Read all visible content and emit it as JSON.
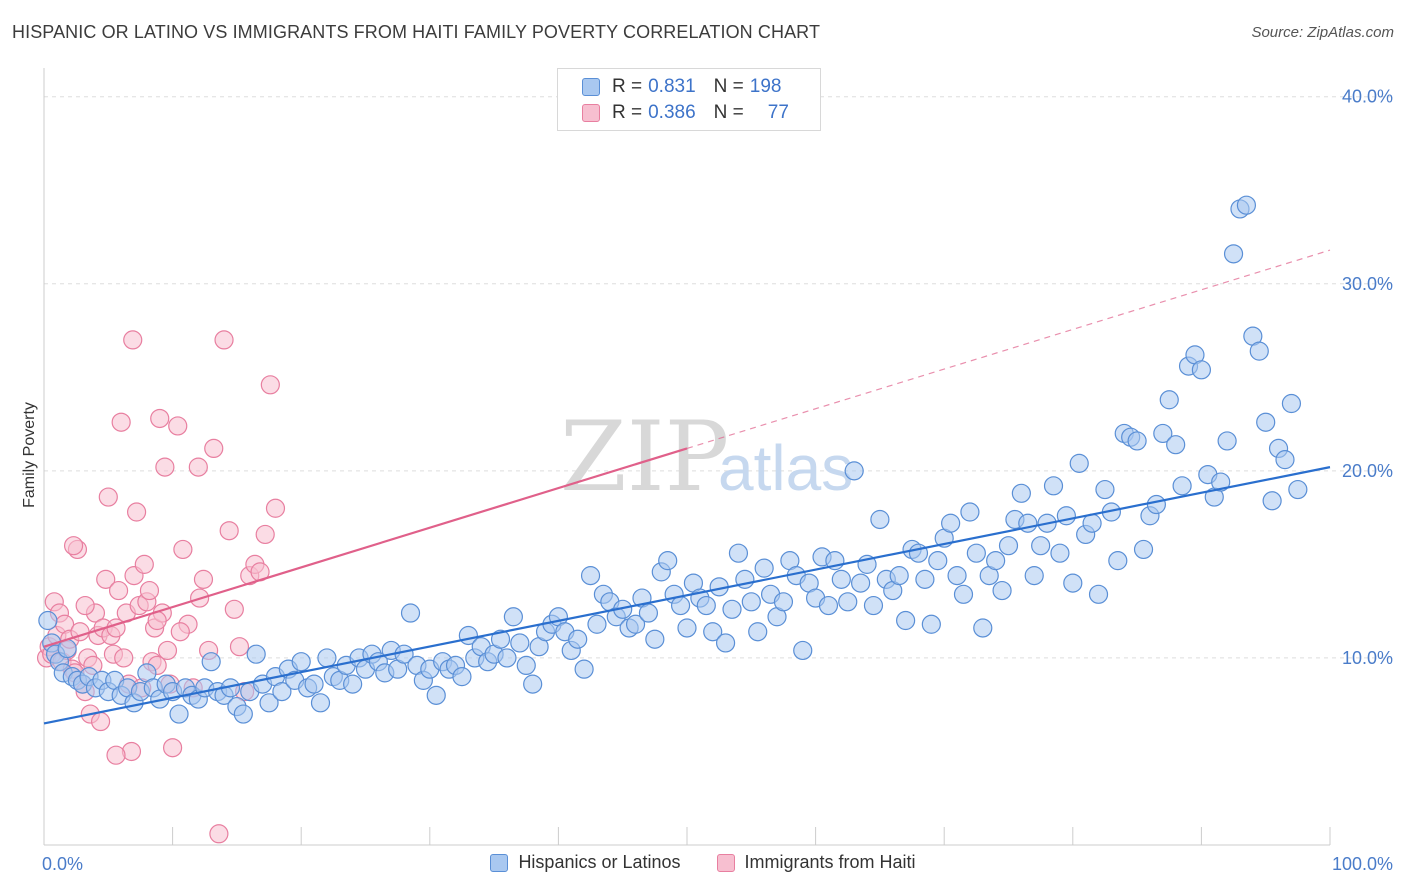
{
  "title": "HISPANIC OR LATINO VS IMMIGRANTS FROM HAITI FAMILY POVERTY CORRELATION CHART",
  "source": "Source: ZipAtlas.com",
  "watermark": {
    "zip": "ZIP",
    "atlas": "atlas"
  },
  "legend": {
    "rows": [
      {
        "r_label": "R =",
        "r_value": "0.831",
        "n_label": "N =",
        "n_value": "198"
      },
      {
        "r_label": "R =",
        "r_value": "0.386",
        "n_label": "N =",
        "n_value": "77"
      }
    ]
  },
  "colors": {
    "blue_fill": "#a9c8f0",
    "blue_stroke": "#5a8fd6",
    "blue_line": "#2a6fce",
    "pink_fill": "#f7bfd0",
    "pink_stroke": "#e87fa0",
    "pink_line": "#e0608a",
    "grid": "#dddddd",
    "tick_text": "#4a7cc9"
  },
  "chart_data": {
    "type": "scatter",
    "title": "HISPANIC OR LATINO VS IMMIGRANTS FROM HAITI FAMILY POVERTY CORRELATION CHART",
    "xlabel": "",
    "ylabel": "Family Poverty",
    "xlim": [
      0,
      100
    ],
    "ylim": [
      0,
      41
    ],
    "x_tick_labels": [
      "0.0%",
      "100.0%"
    ],
    "y_ticks": [
      10,
      20,
      30,
      40
    ],
    "y_tick_labels": [
      "10.0%",
      "20.0%",
      "30.0%",
      "40.0%"
    ],
    "grid": "horizontal dashed",
    "legend_position": "top-center",
    "series": [
      {
        "name": "Hispanics or Latinos",
        "R": 0.831,
        "N": 198,
        "trend": {
          "x": [
            0,
            100
          ],
          "y": [
            6.5,
            20.2
          ],
          "style": "solid"
        },
        "points": [
          [
            0.3,
            12.0
          ],
          [
            0.6,
            10.8
          ],
          [
            0.9,
            10.2
          ],
          [
            1.2,
            9.8
          ],
          [
            1.5,
            9.2
          ],
          [
            1.8,
            10.5
          ],
          [
            2.2,
            9.0
          ],
          [
            2.6,
            8.8
          ],
          [
            3.0,
            8.6
          ],
          [
            3.5,
            9.0
          ],
          [
            4.0,
            8.4
          ],
          [
            4.5,
            8.8
          ],
          [
            5.0,
            8.2
          ],
          [
            5.5,
            8.8
          ],
          [
            6.0,
            8.0
          ],
          [
            6.5,
            8.4
          ],
          [
            7.0,
            7.6
          ],
          [
            7.5,
            8.2
          ],
          [
            8.0,
            9.2
          ],
          [
            8.5,
            8.4
          ],
          [
            9.0,
            7.8
          ],
          [
            9.5,
            8.6
          ],
          [
            10.0,
            8.2
          ],
          [
            10.5,
            7.0
          ],
          [
            11.0,
            8.4
          ],
          [
            11.5,
            8.0
          ],
          [
            12.0,
            7.8
          ],
          [
            12.5,
            8.4
          ],
          [
            13.0,
            9.8
          ],
          [
            13.5,
            8.2
          ],
          [
            14.0,
            8.0
          ],
          [
            14.5,
            8.4
          ],
          [
            15.0,
            7.4
          ],
          [
            15.5,
            7.0
          ],
          [
            16.0,
            8.2
          ],
          [
            16.5,
            10.2
          ],
          [
            17.0,
            8.6
          ],
          [
            17.5,
            7.6
          ],
          [
            18.0,
            9.0
          ],
          [
            18.5,
            8.2
          ],
          [
            19.0,
            9.4
          ],
          [
            19.5,
            8.8
          ],
          [
            20.0,
            9.8
          ],
          [
            20.5,
            8.4
          ],
          [
            21.0,
            8.6
          ],
          [
            21.5,
            7.6
          ],
          [
            22.0,
            10.0
          ],
          [
            22.5,
            9.0
          ],
          [
            23.0,
            8.8
          ],
          [
            23.5,
            9.6
          ],
          [
            24.0,
            8.6
          ],
          [
            24.5,
            10.0
          ],
          [
            25.0,
            9.4
          ],
          [
            25.5,
            10.2
          ],
          [
            26.0,
            9.8
          ],
          [
            26.5,
            9.2
          ],
          [
            27.0,
            10.4
          ],
          [
            27.5,
            9.4
          ],
          [
            28.0,
            10.2
          ],
          [
            28.5,
            12.4
          ],
          [
            29.0,
            9.6
          ],
          [
            29.5,
            8.8
          ],
          [
            30.0,
            9.4
          ],
          [
            30.5,
            8.0
          ],
          [
            31.0,
            9.8
          ],
          [
            31.5,
            9.4
          ],
          [
            32.0,
            9.6
          ],
          [
            32.5,
            9.0
          ],
          [
            33.0,
            11.2
          ],
          [
            33.5,
            10.0
          ],
          [
            34.0,
            10.6
          ],
          [
            34.5,
            9.8
          ],
          [
            35.0,
            10.2
          ],
          [
            35.5,
            11.0
          ],
          [
            36.0,
            10.0
          ],
          [
            36.5,
            12.2
          ],
          [
            37.0,
            10.8
          ],
          [
            37.5,
            9.6
          ],
          [
            38.0,
            8.6
          ],
          [
            38.5,
            10.6
          ],
          [
            39.0,
            11.4
          ],
          [
            39.5,
            11.8
          ],
          [
            40.0,
            12.2
          ],
          [
            40.5,
            11.4
          ],
          [
            41.0,
            10.4
          ],
          [
            41.5,
            11.0
          ],
          [
            42.0,
            9.4
          ],
          [
            42.5,
            14.4
          ],
          [
            43.0,
            11.8
          ],
          [
            43.5,
            13.4
          ],
          [
            44.0,
            13.0
          ],
          [
            44.5,
            12.2
          ],
          [
            45.0,
            12.6
          ],
          [
            45.5,
            11.6
          ],
          [
            46.0,
            11.8
          ],
          [
            46.5,
            13.2
          ],
          [
            47.0,
            12.4
          ],
          [
            47.5,
            11.0
          ],
          [
            48.0,
            14.6
          ],
          [
            48.5,
            15.2
          ],
          [
            49.0,
            13.4
          ],
          [
            49.5,
            12.8
          ],
          [
            50.0,
            11.6
          ],
          [
            50.5,
            14.0
          ],
          [
            51.0,
            13.2
          ],
          [
            51.5,
            12.8
          ],
          [
            52.0,
            11.4
          ],
          [
            52.5,
            13.8
          ],
          [
            53.0,
            10.8
          ],
          [
            53.5,
            12.6
          ],
          [
            54.0,
            15.6
          ],
          [
            54.5,
            14.2
          ],
          [
            55.0,
            13.0
          ],
          [
            55.5,
            11.4
          ],
          [
            56.0,
            14.8
          ],
          [
            56.5,
            13.4
          ],
          [
            57.0,
            12.2
          ],
          [
            57.5,
            13.0
          ],
          [
            58.0,
            15.2
          ],
          [
            58.5,
            14.4
          ],
          [
            59.0,
            10.4
          ],
          [
            59.5,
            14.0
          ],
          [
            60.0,
            13.2
          ],
          [
            60.5,
            15.4
          ],
          [
            61.0,
            12.8
          ],
          [
            61.5,
            15.2
          ],
          [
            62.0,
            14.2
          ],
          [
            62.5,
            13.0
          ],
          [
            63.0,
            20.0
          ],
          [
            63.5,
            14.0
          ],
          [
            64.0,
            15.0
          ],
          [
            64.5,
            12.8
          ],
          [
            65.0,
            17.4
          ],
          [
            65.5,
            14.2
          ],
          [
            66.0,
            13.6
          ],
          [
            66.5,
            14.4
          ],
          [
            67.0,
            12.0
          ],
          [
            67.5,
            15.8
          ],
          [
            68.0,
            15.6
          ],
          [
            68.5,
            14.2
          ],
          [
            69.0,
            11.8
          ],
          [
            69.5,
            15.2
          ],
          [
            70.0,
            16.4
          ],
          [
            70.5,
            17.2
          ],
          [
            71.0,
            14.4
          ],
          [
            71.5,
            13.4
          ],
          [
            72.0,
            17.8
          ],
          [
            72.5,
            15.6
          ],
          [
            73.0,
            11.6
          ],
          [
            73.5,
            14.4
          ],
          [
            74.0,
            15.2
          ],
          [
            74.5,
            13.6
          ],
          [
            75.0,
            16.0
          ],
          [
            75.5,
            17.4
          ],
          [
            76.0,
            18.8
          ],
          [
            76.5,
            17.2
          ],
          [
            77.0,
            14.4
          ],
          [
            77.5,
            16.0
          ],
          [
            78.0,
            17.2
          ],
          [
            78.5,
            19.2
          ],
          [
            79.0,
            15.6
          ],
          [
            79.5,
            17.6
          ],
          [
            80.0,
            14.0
          ],
          [
            80.5,
            20.4
          ],
          [
            81.0,
            16.6
          ],
          [
            81.5,
            17.2
          ],
          [
            82.0,
            13.4
          ],
          [
            82.5,
            19.0
          ],
          [
            83.0,
            17.8
          ],
          [
            83.5,
            15.2
          ],
          [
            84.0,
            22.0
          ],
          [
            84.5,
            21.8
          ],
          [
            85.0,
            21.6
          ],
          [
            85.5,
            15.8
          ],
          [
            86.0,
            17.6
          ],
          [
            86.5,
            18.2
          ],
          [
            87.0,
            22.0
          ],
          [
            87.5,
            23.8
          ],
          [
            88.0,
            21.4
          ],
          [
            88.5,
            19.2
          ],
          [
            89.0,
            25.6
          ],
          [
            89.5,
            26.2
          ],
          [
            90.0,
            25.4
          ],
          [
            90.5,
            19.8
          ],
          [
            91.0,
            18.6
          ],
          [
            91.5,
            19.4
          ],
          [
            92.0,
            21.6
          ],
          [
            92.5,
            31.6
          ],
          [
            93.0,
            34.0
          ],
          [
            93.5,
            34.2
          ],
          [
            94.0,
            27.2
          ],
          [
            94.5,
            26.4
          ],
          [
            95.0,
            22.6
          ],
          [
            95.5,
            18.4
          ],
          [
            96.0,
            21.2
          ],
          [
            96.5,
            20.6
          ],
          [
            97.0,
            23.6
          ],
          [
            97.5,
            19.0
          ]
        ]
      },
      {
        "name": "Immigrants from Haiti",
        "R": 0.386,
        "N": 77,
        "trend": {
          "x": [
            0,
            100
          ],
          "y": [
            10.6,
            31.8
          ],
          "style": "solid to x=50, dashed beyond"
        },
        "points": [
          [
            0.2,
            10.0
          ],
          [
            0.4,
            10.6
          ],
          [
            0.6,
            10.2
          ],
          [
            0.8,
            13.0
          ],
          [
            1.0,
            11.2
          ],
          [
            1.2,
            12.4
          ],
          [
            1.4,
            9.8
          ],
          [
            1.6,
            11.8
          ],
          [
            1.8,
            10.4
          ],
          [
            2.0,
            11.0
          ],
          [
            2.2,
            9.4
          ],
          [
            2.4,
            9.2
          ],
          [
            2.6,
            15.8
          ],
          [
            2.8,
            11.4
          ],
          [
            3.0,
            8.6
          ],
          [
            3.2,
            8.2
          ],
          [
            3.4,
            10.0
          ],
          [
            3.6,
            7.0
          ],
          [
            3.8,
            9.6
          ],
          [
            4.0,
            12.4
          ],
          [
            4.2,
            11.2
          ],
          [
            4.4,
            6.6
          ],
          [
            4.6,
            11.6
          ],
          [
            4.8,
            14.2
          ],
          [
            5.0,
            18.6
          ],
          [
            5.2,
            11.2
          ],
          [
            5.4,
            10.2
          ],
          [
            5.6,
            11.6
          ],
          [
            5.8,
            13.6
          ],
          [
            6.0,
            22.6
          ],
          [
            6.2,
            10.0
          ],
          [
            6.4,
            12.4
          ],
          [
            6.6,
            8.6
          ],
          [
            6.8,
            5.0
          ],
          [
            7.0,
            14.4
          ],
          [
            7.2,
            17.8
          ],
          [
            7.4,
            12.8
          ],
          [
            7.6,
            8.4
          ],
          [
            7.8,
            15.0
          ],
          [
            8.0,
            13.0
          ],
          [
            8.2,
            13.6
          ],
          [
            8.4,
            9.8
          ],
          [
            8.6,
            11.6
          ],
          [
            8.8,
            9.6
          ],
          [
            9.0,
            22.8
          ],
          [
            9.2,
            12.4
          ],
          [
            9.4,
            20.2
          ],
          [
            9.6,
            10.4
          ],
          [
            9.8,
            8.6
          ],
          [
            10.0,
            5.2
          ],
          [
            10.4,
            22.4
          ],
          [
            10.8,
            15.8
          ],
          [
            11.2,
            11.8
          ],
          [
            11.6,
            8.4
          ],
          [
            12.0,
            20.2
          ],
          [
            12.4,
            14.2
          ],
          [
            12.8,
            10.4
          ],
          [
            13.2,
            21.2
          ],
          [
            13.6,
            0.6
          ],
          [
            14.0,
            27.0
          ],
          [
            14.4,
            16.8
          ],
          [
            14.8,
            12.6
          ],
          [
            15.2,
            10.6
          ],
          [
            15.6,
            8.2
          ],
          [
            16.0,
            14.4
          ],
          [
            16.4,
            15.0
          ],
          [
            16.8,
            14.6
          ],
          [
            17.2,
            16.6
          ],
          [
            17.6,
            24.6
          ],
          [
            18.0,
            18.0
          ],
          [
            6.9,
            27.0
          ],
          [
            3.2,
            12.8
          ],
          [
            5.6,
            4.8
          ],
          [
            12.1,
            13.2
          ],
          [
            2.3,
            16.0
          ],
          [
            8.8,
            12.0
          ],
          [
            10.6,
            11.4
          ]
        ]
      }
    ]
  },
  "bottom_legend": [
    "Hispanics or Latinos",
    "Immigrants from Haiti"
  ]
}
